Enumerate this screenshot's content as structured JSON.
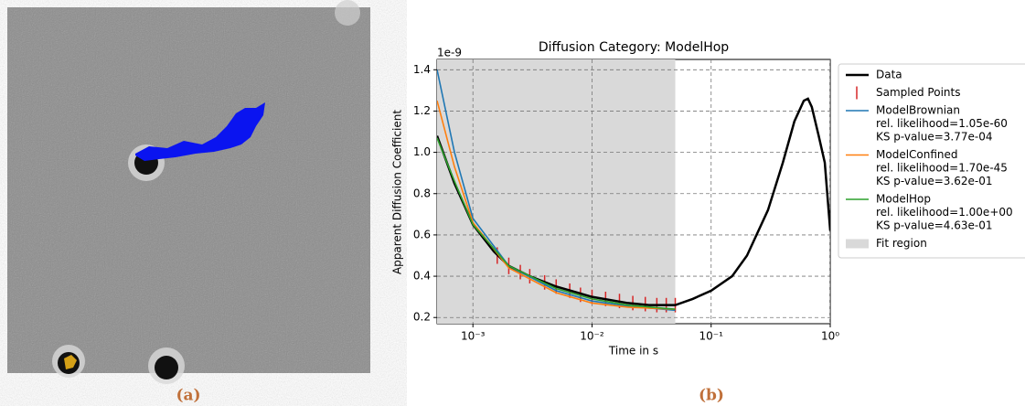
{
  "chart_data": {
    "type": "line",
    "title": "Diffusion Category: ModelHop",
    "xlabel": "Time in s",
    "ylabel": "Apparent Diffusion Coefficient",
    "y_offset_label": "1e-9",
    "log_x": true,
    "grid": true,
    "xlim": [
      0.0005,
      1
    ],
    "xticks": [
      {
        "value": 0.001,
        "label": "10⁻³"
      },
      {
        "value": 0.01,
        "label": "10⁻²"
      },
      {
        "value": 0.1,
        "label": "10⁻¹"
      },
      {
        "value": 1,
        "label": "10⁰"
      }
    ],
    "ylim": [
      0.17,
      1.45
    ],
    "yticks": [
      0.2,
      0.4,
      0.6,
      0.8,
      {
        "value": 1.0,
        "label": "1.0"
      },
      1.2,
      1.4
    ],
    "fit_region": {
      "name": "Fit region",
      "color": "#d9d9d9",
      "x": [
        0.0005,
        0.05
      ]
    },
    "series": [
      {
        "name": "Data",
        "color": "#000000",
        "x": [
          0.0005,
          0.0007,
          0.001,
          0.0015,
          0.002,
          0.003,
          0.005,
          0.01,
          0.02,
          0.03,
          0.05,
          0.07,
          0.1,
          0.15,
          0.2,
          0.3,
          0.4,
          0.5,
          0.6,
          0.65,
          0.7,
          0.8,
          0.9,
          1.0
        ],
        "values": [
          1.08,
          0.85,
          0.65,
          0.52,
          0.45,
          0.4,
          0.35,
          0.3,
          0.27,
          0.26,
          0.26,
          0.29,
          0.33,
          0.4,
          0.5,
          0.72,
          0.95,
          1.15,
          1.25,
          1.26,
          1.22,
          1.08,
          0.95,
          0.62
        ]
      },
      {
        "name": "ModelBrownian",
        "stats": [
          "rel. likelihood=1.05e-60",
          "KS p-value=3.77e-04"
        ],
        "color": "#1f77b4",
        "x": [
          0.0005,
          0.0007,
          0.001,
          0.002,
          0.005,
          0.01,
          0.02,
          0.05
        ],
        "values": [
          1.4,
          1.0,
          0.68,
          0.45,
          0.33,
          0.28,
          0.255,
          0.235
        ]
      },
      {
        "name": "ModelConfined",
        "stats": [
          "rel. likelihood=1.70e-45",
          "KS p-value=3.62e-01"
        ],
        "color": "#ff7f0e",
        "x": [
          0.0005,
          0.0007,
          0.001,
          0.002,
          0.005,
          0.01,
          0.02,
          0.05
        ],
        "values": [
          1.25,
          0.93,
          0.66,
          0.44,
          0.32,
          0.27,
          0.25,
          0.24
        ]
      },
      {
        "name": "ModelHop",
        "stats": [
          "rel. likelihood=1.00e+00",
          "KS p-value=4.63e-01"
        ],
        "color": "#2ca02c",
        "x": [
          0.0005,
          0.0007,
          0.001,
          0.002,
          0.005,
          0.01,
          0.02,
          0.05
        ],
        "values": [
          1.07,
          0.86,
          0.65,
          0.45,
          0.34,
          0.29,
          0.26,
          0.24
        ]
      }
    ],
    "sampled": {
      "name": "Sampled Points",
      "color": "#d62728",
      "x": [
        0.0016,
        0.002,
        0.0025,
        0.003,
        0.004,
        0.005,
        0.0065,
        0.008,
        0.01,
        0.013,
        0.017,
        0.022,
        0.028,
        0.035,
        0.042,
        0.05
      ],
      "values": [
        0.5,
        0.45,
        0.42,
        0.4,
        0.37,
        0.35,
        0.33,
        0.31,
        0.3,
        0.29,
        0.28,
        0.27,
        0.265,
        0.26,
        0.26,
        0.26
      ],
      "errors": [
        0.04,
        0.04,
        0.035,
        0.035,
        0.035,
        0.035,
        0.035,
        0.035,
        0.035,
        0.035,
        0.035,
        0.035,
        0.035,
        0.035,
        0.035,
        0.035
      ]
    }
  },
  "captions": [
    "(a)",
    "(b)"
  ]
}
